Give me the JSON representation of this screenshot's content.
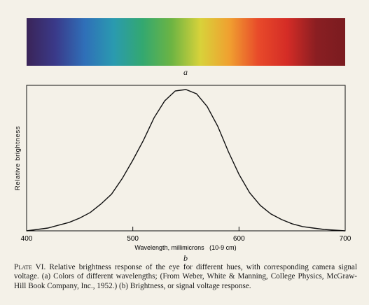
{
  "figure": {
    "panel_a_label": "a",
    "panel_b_label": "b",
    "spectrum_colors": [
      "#3a2458",
      "#3a3a8a",
      "#2f6fb8",
      "#2a9ab0",
      "#33a870",
      "#6cb443",
      "#d8d23a",
      "#f0a030",
      "#e84a2a",
      "#d42c26",
      "#8a1e22",
      "#7a1c20"
    ]
  },
  "chart_data": {
    "type": "line",
    "title": "",
    "xlabel": "Wavelength, millimicrons",
    "xlabel_unit": "(10-9 cm)",
    "ylabel": "Relative brightness",
    "xlim": [
      400,
      700
    ],
    "ylim": [
      0,
      1
    ],
    "xticks": [
      400,
      500,
      600,
      700
    ],
    "xtick_labels": [
      "400",
      "500",
      "600",
      "700"
    ],
    "grid": false,
    "series": [
      {
        "x": [
          400,
          410,
          420,
          430,
          440,
          450,
          460,
          470,
          480,
          490,
          500,
          510,
          520,
          530,
          540,
          550,
          560,
          570,
          580,
          590,
          600,
          610,
          620,
          630,
          640,
          650,
          660,
          670,
          680,
          690,
          700
        ],
        "y": [
          0.0,
          0.01,
          0.02,
          0.04,
          0.06,
          0.09,
          0.13,
          0.19,
          0.26,
          0.37,
          0.5,
          0.64,
          0.8,
          0.92,
          0.99,
          1.0,
          0.97,
          0.88,
          0.74,
          0.56,
          0.4,
          0.27,
          0.18,
          0.12,
          0.08,
          0.05,
          0.03,
          0.02,
          0.01,
          0.005,
          0.0
        ]
      }
    ]
  },
  "caption": {
    "plate": "Plate VI.",
    "text": " Relative brightness response of the eye for different hues, with corresponding camera signal voltage. (a) Colors of different wavelengths; (From Weber, White & Manning, College Physics, McGraw-Hill Book Company, Inc., 1952.) (b) Brightness, or signal voltage response."
  }
}
